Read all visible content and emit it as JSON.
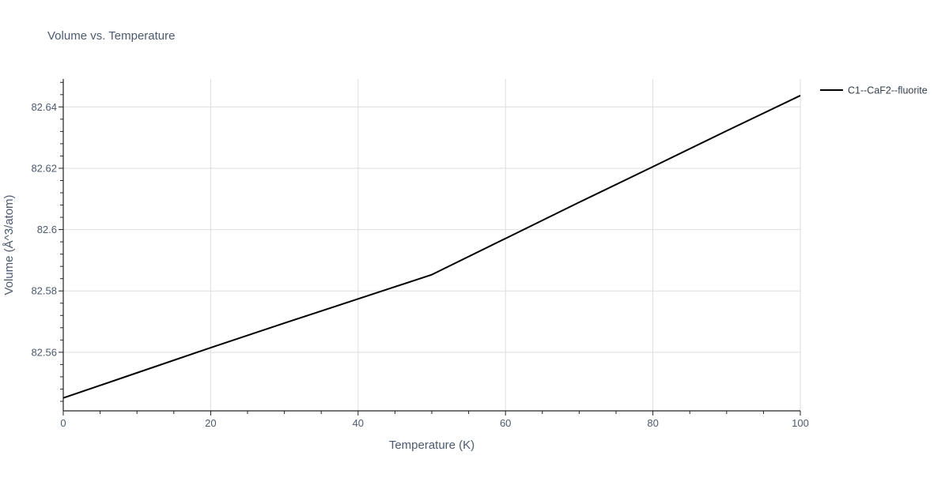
{
  "chart_data": {
    "type": "line",
    "title": "Volume vs. Temperature",
    "xlabel": "Temperature (K)",
    "ylabel": "Volume (Å^3/atom)",
    "xlim": [
      0,
      100
    ],
    "ylim": [
      82.5409,
      82.6491
    ],
    "x_ticks": [
      0,
      20,
      40,
      60,
      80,
      100
    ],
    "x_tick_labels": [
      "0",
      "20",
      "40",
      "60",
      "80",
      "100"
    ],
    "y_ticks": [
      82.56,
      82.58,
      82.6,
      82.62,
      82.64
    ],
    "y_tick_labels": [
      "82.56",
      "82.58",
      "82.6",
      "82.62",
      "82.64"
    ],
    "grid": true,
    "legend_position": "top-right",
    "series": [
      {
        "name": "C1--CaF2--fluorite",
        "color": "#000000",
        "x": [
          0,
          10,
          20,
          30,
          40,
          50,
          60,
          70,
          80,
          90,
          100
        ],
        "y": [
          82.5451,
          82.5533,
          82.5615,
          82.5695,
          82.5774,
          82.5853,
          82.5971,
          82.6089,
          82.6205,
          82.6322,
          82.6437
        ]
      }
    ]
  }
}
